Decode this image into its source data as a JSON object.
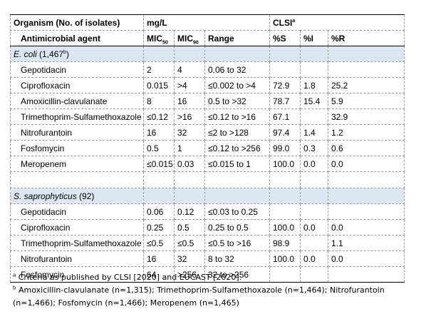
{
  "header": {
    "organism_label": "Organism (No. of isolates)",
    "mgl_label": "mg/L",
    "clsi_label": "CLSI",
    "clsi_sup": "a",
    "agent_label": "Antimicrobial agent",
    "mic_prefix": "MIC",
    "mic50_sub": "50",
    "mic90_sub": "90",
    "range_label": "Range",
    "pct_s": "%S",
    "pct_i": "%I",
    "pct_r": "%R"
  },
  "groups": [
    {
      "name": "E. coli",
      "count_open": " (1,467",
      "count_sup": "b",
      "count_close": ")",
      "rows": [
        {
          "agent": "Gepotidacin",
          "mic50": "2",
          "mic90": "4",
          "range": "0.06 to 32",
          "s": "",
          "i": "",
          "r": ""
        },
        {
          "agent": "Ciprofloxacin",
          "mic50": "0.015",
          "mic90": ">4",
          "range": "≤0.002 to >4",
          "s": "72.9",
          "i": "1.8",
          "r": "25.2"
        },
        {
          "agent": "Amoxicillin-clavulanate",
          "mic50": "8",
          "mic90": "16",
          "range": "0.5 to >32",
          "s": "78.7",
          "i": "15.4",
          "r": "5.9"
        },
        {
          "agent": "Trimethoprim-Sulfamethoxazole",
          "mic50": "≤0.12",
          "mic90": ">16",
          "range": "≤0.12 to >16",
          "s": "67.1",
          "i": "",
          "r": "32.9"
        },
        {
          "agent": "Nitrofurantoin",
          "mic50": "16",
          "mic90": "32",
          "range": "≤2 to >128",
          "s": "97.4",
          "i": "1.4",
          "r": "1.2"
        },
        {
          "agent": "Fosfomycin",
          "mic50": "0.5",
          "mic90": "1",
          "range": "≤0.12 to >256",
          "s": "99.0",
          "i": "0.3",
          "r": "0.6"
        },
        {
          "agent": "Meropenem",
          "mic50": "≤0.015",
          "mic90": "0.03",
          "range": "≤0.015 to 1",
          "s": "100.0",
          "i": "0.0",
          "r": "0.0"
        }
      ]
    },
    {
      "name": "S. saprophyticus",
      "count_open": " (92)",
      "count_sup": "",
      "count_close": "",
      "rows": [
        {
          "agent": "Gepotidacin",
          "mic50": "0.06",
          "mic90": "0.12",
          "range": "≤0.03 to 0.25",
          "s": "",
          "i": "",
          "r": ""
        },
        {
          "agent": "Ciprofloxacin",
          "mic50": "0.25",
          "mic90": "0.5",
          "range": "0.25 to 0.5",
          "s": "100.0",
          "i": "0.0",
          "r": "0.0"
        },
        {
          "agent": "Trimethoprim-Sulfamethoxazole",
          "mic50": "≤0.5",
          "mic90": "≤0.5",
          "range": "≤0.5 to >16",
          "s": "98.9",
          "i": "",
          "r": "1.1"
        },
        {
          "agent": "Nitrofurantoin",
          "mic50": "16",
          "mic90": "32",
          "range": "8 to 32",
          "s": "100.0",
          "i": "0.0",
          "r": "0.0"
        },
        {
          "agent": "Fosfomycin",
          "mic50": "64",
          "mic90": ">256",
          "range": "32 to >256",
          "s": "",
          "i": "",
          "r": ""
        }
      ]
    }
  ],
  "footnotes": [
    {
      "mark": "a",
      "text": " Criteria as published by CLSI [2020] and EUCAST [2020]."
    },
    {
      "mark": "b",
      "text": " Amoxicillin-clavulanate (n=1,315); Trimethoprim-Sulfamethoxazole (n=1,464); Nitrofurantoin (n=1,466); Fosfomycin (n=1,466); Meropenem (n=1,465)"
    }
  ],
  "colors": {
    "group_band": "#dce6f2",
    "grid": "#9a9a9a"
  }
}
